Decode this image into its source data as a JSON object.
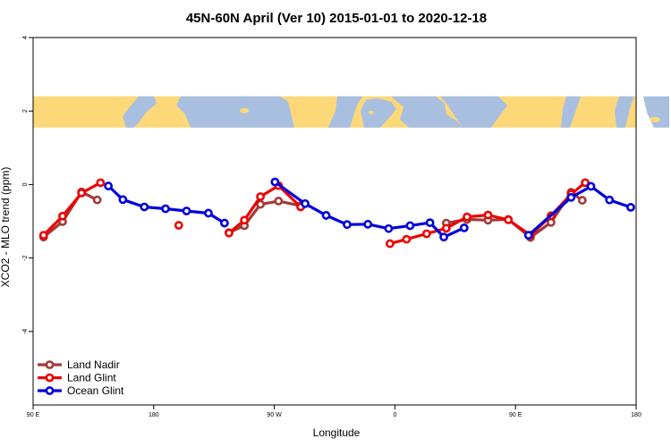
{
  "chart_data": {
    "type": "line",
    "title": "45N-60N April (Ver 10)   2015-01-01 to 2020-12-18",
    "xlabel": "Longitude",
    "ylabel": "XCO2 - MLO trend (ppm)",
    "xlim": [
      -90,
      180
    ],
    "ylim": [
      -6,
      4
    ],
    "x_ticks": [
      {
        "value": -90,
        "label": "90 E"
      },
      {
        "value": -36,
        "label": "180"
      },
      {
        "value": 18,
        "label": "90 W"
      },
      {
        "value": 72,
        "label": "0"
      },
      {
        "value": 126,
        "label": "90 E"
      },
      {
        "value": 180,
        "label": "180"
      }
    ],
    "y_ticks": [
      {
        "value": -4,
        "label": "-4"
      },
      {
        "value": -2,
        "label": "-2"
      },
      {
        "value": 0,
        "label": "0"
      },
      {
        "value": 2,
        "label": "2"
      },
      {
        "value": 4,
        "label": "4"
      }
    ],
    "map_strip": {
      "y_top": 2.4,
      "y_bottom": 1.55,
      "ocean_color": "#a8bfe0",
      "land_color": "#fdd879"
    },
    "legend_position": "bottom-left",
    "series": [
      {
        "name": "Land Nadir",
        "color": "#a33a3a",
        "segments": [
          [
            [
              -85.3,
              -1.43
            ],
            [
              -76.8,
              -1.01
            ],
            [
              -68.3,
              -0.2
            ],
            [
              -61.3,
              -0.42
            ]
          ],
          [
            [
              -2.3,
              -1.31
            ],
            [
              4.6,
              -1.12
            ],
            [
              11.8,
              -0.54
            ],
            [
              19.9,
              -0.45
            ],
            [
              29.8,
              -0.58
            ]
          ],
          [
            [
              95.0,
              -1.05
            ],
            [
              104.3,
              -0.95
            ],
            [
              113.7,
              -0.97
            ],
            [
              122.8,
              -0.95
            ],
            [
              132.7,
              -1.44
            ],
            [
              141.9,
              -1.03
            ],
            [
              150.9,
              -0.21
            ],
            [
              155.9,
              -0.43
            ]
          ]
        ]
      },
      {
        "name": "Land Glint",
        "color": "#ee0000",
        "segments": [
          [
            [
              -85.3,
              -1.38
            ],
            [
              -76.8,
              -0.86
            ],
            [
              -68.3,
              -0.23
            ],
            [
              -59.8,
              0.05
            ]
          ],
          [
            [
              -24.8,
              -1.11
            ]
          ],
          [
            [
              -2.3,
              -1.32
            ],
            [
              4.6,
              -0.97
            ],
            [
              11.8,
              -0.33
            ],
            [
              19.9,
              -0.03
            ],
            [
              29.8,
              -0.61
            ]
          ],
          [
            [
              69.8,
              -1.61
            ],
            [
              77.2,
              -1.49
            ],
            [
              86.2,
              -1.34
            ],
            [
              95.0,
              -1.19
            ],
            [
              104.3,
              -0.88
            ],
            [
              113.7,
              -0.83
            ],
            [
              122.8,
              -0.96
            ],
            [
              132.7,
              -1.38
            ],
            [
              141.9,
              -0.85
            ],
            [
              150.9,
              -0.26
            ],
            [
              157.2,
              0.05
            ]
          ]
        ]
      },
      {
        "name": "Ocean Glint",
        "color": "#0000dd",
        "segments": [
          [
            [
              -56.3,
              -0.04
            ],
            [
              -49.8,
              -0.41
            ],
            [
              -40.2,
              -0.61
            ],
            [
              -30.7,
              -0.66
            ],
            [
              -21.3,
              -0.72
            ],
            [
              -11.5,
              -0.78
            ],
            [
              -4.3,
              -1.05
            ]
          ],
          [
            [
              18.3,
              0.07
            ],
            [
              31.8,
              -0.52
            ],
            [
              41.2,
              -0.84
            ],
            [
              50.6,
              -1.09
            ],
            [
              59.9,
              -1.08
            ],
            [
              69.2,
              -1.2
            ],
            [
              78.8,
              -1.12
            ],
            [
              87.7,
              -1.04
            ],
            [
              93.9,
              -1.43
            ],
            [
              103.0,
              -1.18
            ]
          ],
          [
            [
              131.8,
              -1.38
            ],
            [
              150.9,
              -0.35
            ],
            [
              159.8,
              -0.05
            ],
            [
              168.1,
              -0.42
            ],
            [
              177.6,
              -0.62
            ]
          ]
        ]
      }
    ]
  }
}
